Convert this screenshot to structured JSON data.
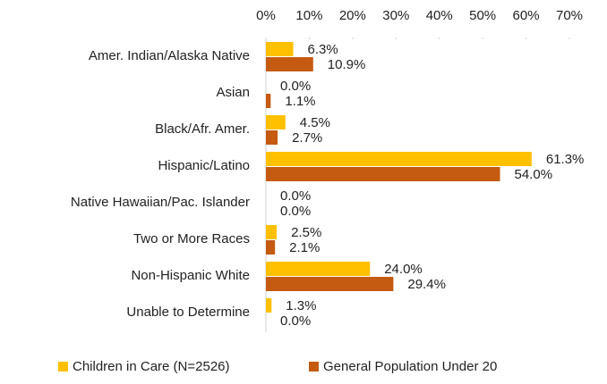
{
  "chart_data": {
    "type": "bar",
    "orientation": "horizontal",
    "categories": [
      "Amer. Indian/Alaska Native",
      "Asian",
      "Black/Afr. Amer.",
      "Hispanic/Latino",
      "Native Hawaiian/Pac. Islander",
      "Two or More Races",
      "Non-Hispanic White",
      "Unable to Determine"
    ],
    "series": [
      {
        "name": "Children in Care (N=2526)",
        "color": "#FFC000",
        "values": [
          6.3,
          0.0,
          4.5,
          61.3,
          0.0,
          2.5,
          24.0,
          1.3
        ],
        "value_labels": [
          "6.3%",
          "0.0%",
          "4.5%",
          "61.3%",
          "0.0%",
          "2.5%",
          "24.0%",
          "1.3%"
        ]
      },
      {
        "name": "General Population Under 20",
        "color": "#C55A11",
        "values": [
          10.9,
          1.1,
          2.7,
          54.0,
          0.0,
          2.1,
          29.4,
          0.0
        ],
        "value_labels": [
          "10.9%",
          "1.1%",
          "2.7%",
          "54.0%",
          "0.0%",
          "2.1%",
          "29.4%",
          "0.0%"
        ]
      }
    ],
    "xlim": [
      0,
      70
    ],
    "xticks": [
      {
        "value": 0,
        "label": "0%"
      },
      {
        "value": 10,
        "label": "10%"
      },
      {
        "value": 20,
        "label": "20%"
      },
      {
        "value": 30,
        "label": "30%"
      },
      {
        "value": 40,
        "label": "40%"
      },
      {
        "value": 50,
        "label": "50%"
      },
      {
        "value": 60,
        "label": "60%"
      },
      {
        "value": 70,
        "label": "70%"
      }
    ],
    "legend": "bottom"
  }
}
